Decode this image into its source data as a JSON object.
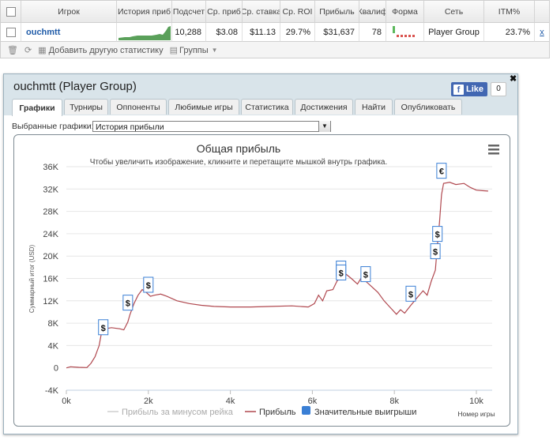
{
  "stats_table": {
    "headers": [
      "Игрок",
      "История приб",
      "Подсчет",
      "Ср. приб",
      "Ср. ставка",
      "Ср. ROI",
      "Прибыль",
      "Квалиф",
      "Форма",
      "Сеть",
      "ITM%"
    ],
    "row": {
      "player": "ouchmtt",
      "count": "10,288",
      "avg_profit": "$3.08",
      "avg_stake": "$11.13",
      "avg_roi": "29.7%",
      "profit": "$31,637",
      "quality": "78",
      "network": "Player Group",
      "itm": "23.7%",
      "remove": "x"
    },
    "toolbar": {
      "add_stats": "Добавить другую статистику",
      "groups": "Группы"
    }
  },
  "panel": {
    "title": "ouchmtt (Player Group)",
    "fb_like": "Like",
    "fb_count": "0",
    "close": "✖",
    "tabs": [
      "Графики",
      "Турниры",
      "Оппоненты",
      "Любимые игры",
      "Статистика",
      "Достижения",
      "Найти",
      "Опубликовать"
    ],
    "active_tab": "Графики",
    "graph_select_label": "Выбранные графики:",
    "graph_select_value": "История прибыли"
  },
  "chart_data": {
    "type": "line",
    "title": "Общая прибыль",
    "subtitle": "Чтобы увеличить изображение, кликните и перетащите мышкой внутрь графика.",
    "ylabel": "Суммарный итог (USD)",
    "xlabel": "Номер игры",
    "x_ticks": [
      "0k",
      "2k",
      "4k",
      "6k",
      "8k",
      "10k"
    ],
    "y_ticks": [
      "36K",
      "32K",
      "28K",
      "24K",
      "20K",
      "16K",
      "12K",
      "8K",
      "4K",
      "0",
      "-4K"
    ],
    "xlim": [
      0,
      10288
    ],
    "ylim": [
      -4000,
      36000
    ],
    "legend": [
      "Прибыль за минусом рейка",
      "Прибыль",
      "Значительные выигрыши"
    ],
    "legend_position": "bottom",
    "series": [
      {
        "name": "Прибыль",
        "color": "#b0484f",
        "points": [
          [
            0,
            0
          ],
          [
            100,
            200
          ],
          [
            300,
            100
          ],
          [
            500,
            50
          ],
          [
            600,
            800
          ],
          [
            700,
            2000
          ],
          [
            800,
            4000
          ],
          [
            850,
            6000
          ],
          [
            950,
            7000
          ],
          [
            1100,
            7200
          ],
          [
            1300,
            7000
          ],
          [
            1400,
            6800
          ],
          [
            1500,
            8200
          ],
          [
            1550,
            9500
          ],
          [
            1650,
            11500
          ],
          [
            1750,
            13000
          ],
          [
            1850,
            14000
          ],
          [
            1950,
            13500
          ],
          [
            2050,
            12800
          ],
          [
            2150,
            13000
          ],
          [
            2300,
            13200
          ],
          [
            2450,
            12800
          ],
          [
            2700,
            12000
          ],
          [
            3000,
            11500
          ],
          [
            3300,
            11200
          ],
          [
            3600,
            11000
          ],
          [
            4000,
            10900
          ],
          [
            4500,
            10900
          ],
          [
            5000,
            11000
          ],
          [
            5500,
            11100
          ],
          [
            5900,
            10900
          ],
          [
            6050,
            11500
          ],
          [
            6150,
            13000
          ],
          [
            6250,
            12000
          ],
          [
            6350,
            13800
          ],
          [
            6500,
            14000
          ],
          [
            6600,
            15500
          ],
          [
            6700,
            16300
          ],
          [
            6800,
            16900
          ],
          [
            6950,
            16000
          ],
          [
            7100,
            15000
          ],
          [
            7200,
            16200
          ],
          [
            7300,
            15500
          ],
          [
            7450,
            14500
          ],
          [
            7600,
            13500
          ],
          [
            7750,
            12000
          ],
          [
            7850,
            11200
          ],
          [
            7950,
            10400
          ],
          [
            8050,
            9600
          ],
          [
            8150,
            10400
          ],
          [
            8250,
            9800
          ],
          [
            8400,
            11200
          ],
          [
            8550,
            12500
          ],
          [
            8700,
            13800
          ],
          [
            8800,
            13000
          ],
          [
            8900,
            15500
          ],
          [
            9000,
            17500
          ],
          [
            9050,
            22000
          ],
          [
            9100,
            26000
          ],
          [
            9150,
            31000
          ],
          [
            9200,
            33000
          ],
          [
            9350,
            33200
          ],
          [
            9500,
            32800
          ],
          [
            9700,
            33000
          ],
          [
            9850,
            32300
          ],
          [
            10000,
            31800
          ],
          [
            10150,
            31700
          ],
          [
            10288,
            31637
          ]
        ]
      },
      {
        "name": "Прибыль за минусом рейка",
        "color": "#cfcfcf",
        "points": []
      }
    ],
    "markers": [
      {
        "x": 900,
        "y": 7200,
        "label": "$"
      },
      {
        "x": 1500,
        "y": 11600,
        "label": "$"
      },
      {
        "x": 2000,
        "y": 14800,
        "label": "$"
      },
      {
        "x": 6700,
        "y": 17700,
        "label": "$"
      },
      {
        "x": 6700,
        "y": 17000,
        "label": "$"
      },
      {
        "x": 7300,
        "y": 16700,
        "label": "$"
      },
      {
        "x": 8400,
        "y": 13200,
        "label": "$"
      },
      {
        "x": 9000,
        "y": 20800,
        "label": "$"
      },
      {
        "x": 9050,
        "y": 23900,
        "label": "$"
      },
      {
        "x": 9150,
        "y": 35200,
        "label": "€"
      }
    ]
  }
}
